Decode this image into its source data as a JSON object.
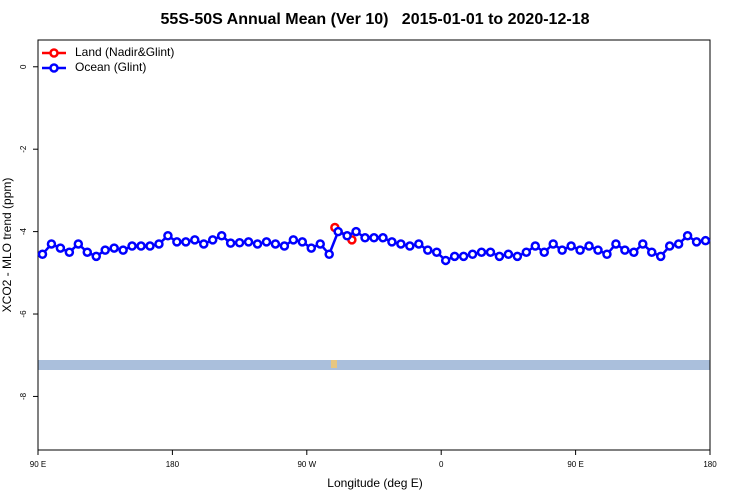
{
  "chart_data": {
    "type": "line",
    "title": "55S-50S Annual Mean (Ver 10)   2015-01-01 to 2020-12-18",
    "x_label": "Longitude (deg E)",
    "y_label": "XCO2 - MLO trend (ppm)",
    "xlim": [
      90,
      540
    ],
    "ylim": [
      -9.3,
      0.65
    ],
    "xticks": [
      {
        "value": 90,
        "label": "90 E"
      },
      180,
      {
        "value": 270,
        "label": "90 W"
      },
      {
        "value": 360,
        "label": "0"
      },
      {
        "value": 450,
        "label": "90 E"
      },
      {
        "value": 540,
        "label": "180"
      }
    ],
    "yticks": [
      0,
      -2,
      -4,
      -6,
      -8
    ],
    "legend": "top-left",
    "series": [
      {
        "name": "Land (Nadir&Glint)",
        "color": "#ff0000",
        "x": [
          288.8,
          300.2
        ],
        "values": [
          -3.9,
          -4.2
        ]
      },
      {
        "name": "Ocean (Glint)",
        "color": "#0000ff",
        "x": [
          93,
          99,
          105,
          111,
          117,
          123,
          129,
          135,
          141,
          147,
          153,
          159,
          165,
          171,
          177,
          183,
          189,
          195,
          201,
          207,
          213,
          219,
          225,
          231,
          237,
          243,
          249,
          255,
          261,
          267,
          273,
          279,
          285,
          291,
          297,
          303,
          309,
          315,
          321,
          327,
          333,
          339,
          345,
          351,
          357,
          363,
          369,
          375,
          381,
          387,
          393,
          399,
          405,
          411,
          417,
          423,
          429,
          435,
          441,
          447,
          453,
          459,
          465,
          471,
          477,
          483,
          489,
          495,
          501,
          507,
          513,
          519,
          525,
          531,
          537
        ],
        "values": [
          -4.55,
          -4.3,
          -4.4,
          -4.5,
          -4.3,
          -4.5,
          -4.6,
          -4.45,
          -4.4,
          -4.45,
          -4.35,
          -4.35,
          -4.35,
          -4.3,
          -4.1,
          -4.25,
          -4.25,
          -4.2,
          -4.3,
          -4.2,
          -4.1,
          -4.28,
          -4.27,
          -4.25,
          -4.3,
          -4.25,
          -4.3,
          -4.35,
          -4.2,
          -4.25,
          -4.4,
          -4.3,
          -4.55,
          -4.0,
          -4.1,
          -4.0,
          -4.15,
          -4.15,
          -4.15,
          -4.25,
          -4.3,
          -4.35,
          -4.3,
          -4.45,
          -4.5,
          -4.7,
          -4.6,
          -4.6,
          -4.55,
          -4.5,
          -4.5,
          -4.6,
          -4.55,
          -4.6,
          -4.5,
          -4.35,
          -4.5,
          -4.3,
          -4.45,
          -4.35,
          -4.45,
          -4.35,
          -4.45,
          -4.55,
          -4.3,
          -4.45,
          -4.5,
          -4.3,
          -4.5,
          -4.6,
          -4.35,
          -4.3,
          -4.1,
          -4.25,
          -4.22
        ]
      }
    ]
  }
}
